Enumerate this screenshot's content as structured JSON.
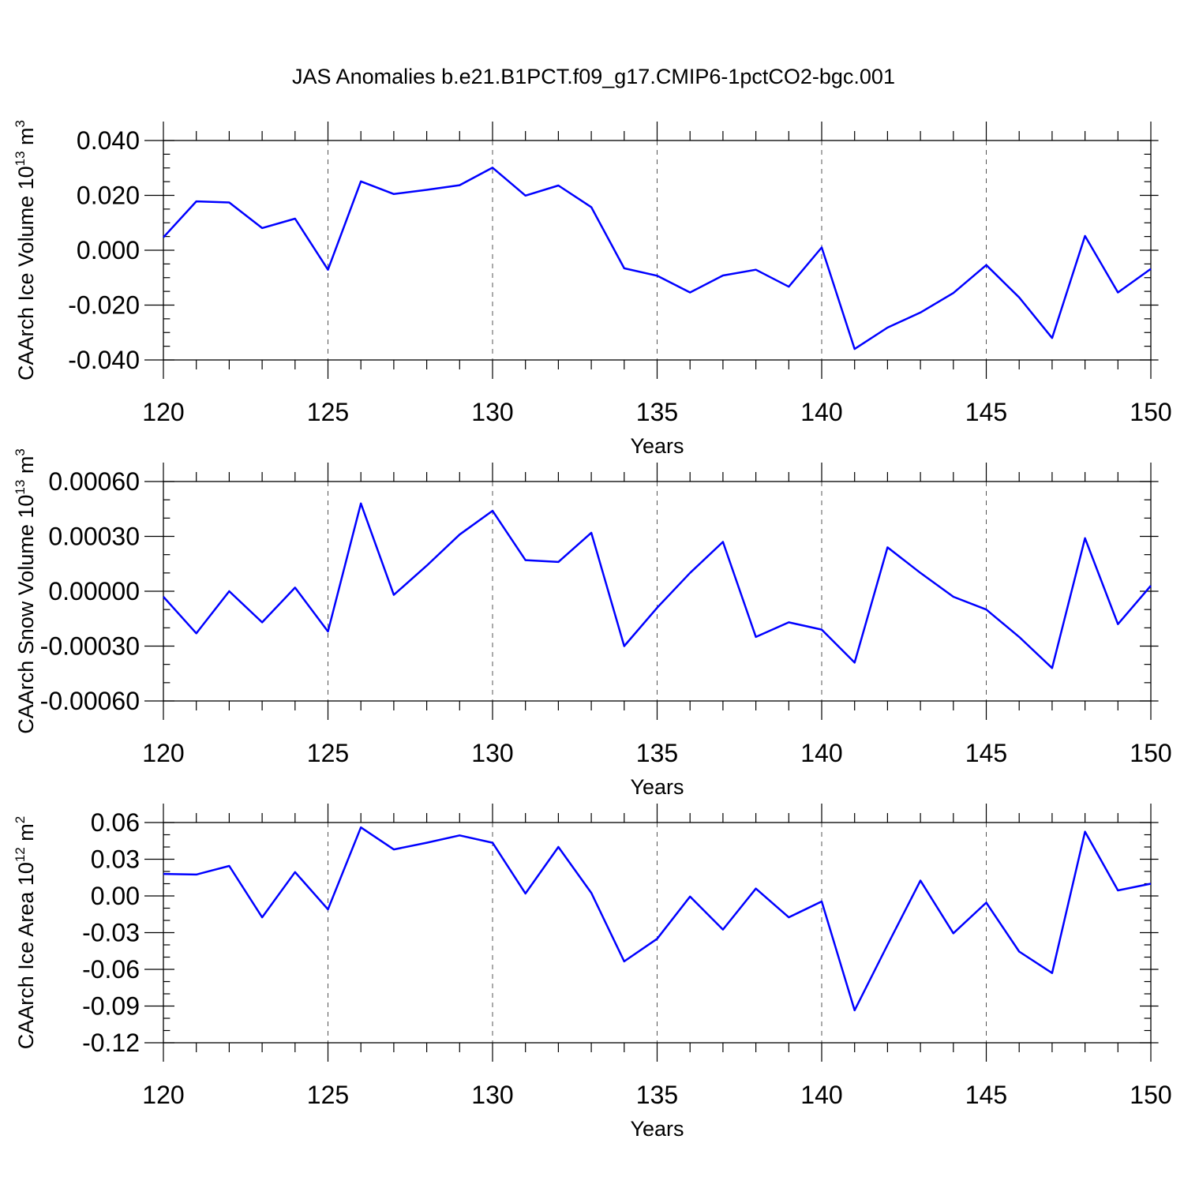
{
  "title": "JAS Anomalies b.e21.B1PCT.f09_g17.CMIP6-1pctCO2-bgc.001",
  "colors": {
    "line": "#0000ff",
    "axis": "#000000",
    "grid": "#555555"
  },
  "chart_data": [
    {
      "type": "line",
      "ylabel": "CAArch Ice Volume 10",
      "ylabel_exp": "13",
      "ylabel_unit": " m",
      "ylabel_unit_exp": "3",
      "xlabel": "Years",
      "xlim": [
        120,
        150
      ],
      "ylim": [
        -0.04,
        0.04
      ],
      "x_major_ticks": [
        120,
        125,
        130,
        135,
        140,
        145,
        150
      ],
      "x_tick_labels": [
        "120",
        "125",
        "130",
        "135",
        "140",
        "145",
        "150"
      ],
      "y_major_ticks": [
        -0.04,
        -0.02,
        0.0,
        0.02,
        0.04
      ],
      "y_tick_labels": [
        "-0.040",
        "-0.020",
        "0.000",
        "0.020",
        "0.040"
      ],
      "y_minor_step": 0.005,
      "x": [
        120,
        121,
        122,
        123,
        124,
        125,
        126,
        127,
        128,
        129,
        130,
        131,
        132,
        133,
        134,
        135,
        136,
        137,
        138,
        139,
        140,
        141,
        142,
        143,
        144,
        145,
        146,
        147,
        148,
        149,
        150
      ],
      "values": [
        0.0047,
        0.0178,
        0.0174,
        0.0081,
        0.0115,
        -0.0071,
        0.0251,
        0.0205,
        0.022,
        0.0237,
        0.0301,
        0.0199,
        0.0236,
        0.0157,
        -0.0066,
        -0.0093,
        -0.0154,
        -0.0092,
        -0.0071,
        -0.0133,
        0.001,
        -0.036,
        -0.0282,
        -0.0227,
        -0.0156,
        -0.0054,
        -0.0172,
        -0.032,
        0.0052,
        -0.0154,
        -0.0068
      ]
    },
    {
      "type": "line",
      "ylabel": "CAArch Snow Volume 10",
      "ylabel_exp": "13",
      "ylabel_unit": " m",
      "ylabel_unit_exp": "3",
      "xlabel": "Years",
      "xlim": [
        120,
        150
      ],
      "ylim": [
        -0.0006,
        0.0006
      ],
      "x_major_ticks": [
        120,
        125,
        130,
        135,
        140,
        145,
        150
      ],
      "x_tick_labels": [
        "120",
        "125",
        "130",
        "135",
        "140",
        "145",
        "150"
      ],
      "y_major_ticks": [
        -0.0006,
        -0.0003,
        0.0,
        0.0003,
        0.0006
      ],
      "y_tick_labels": [
        "-0.00060",
        "-0.00030",
        "0.00000",
        "0.00030",
        "0.00060"
      ],
      "y_minor_step": 0.0001,
      "x": [
        120,
        121,
        122,
        123,
        124,
        125,
        126,
        127,
        128,
        129,
        130,
        131,
        132,
        133,
        134,
        135,
        136,
        137,
        138,
        139,
        140,
        141,
        142,
        143,
        144,
        145,
        146,
        147,
        148,
        149,
        150
      ],
      "values": [
        -3e-05,
        -0.00023,
        0.0,
        -0.00017,
        2e-05,
        -0.00022,
        0.00048,
        -2e-05,
        0.00014,
        0.00031,
        0.00044,
        0.00017,
        0.00016,
        0.00032,
        -0.0003,
        -9e-05,
        0.0001,
        0.00027,
        -0.00025,
        -0.00017,
        -0.00021,
        -0.00039,
        0.00024,
        0.0001,
        -3e-05,
        -0.0001,
        -0.00025,
        -0.00042,
        0.00029,
        -0.00018,
        3e-05
      ]
    },
    {
      "type": "line",
      "ylabel": "CAArch Ice Area 10",
      "ylabel_exp": "12",
      "ylabel_unit": " m",
      "ylabel_unit_exp": "2",
      "xlabel": "Years",
      "xlim": [
        120,
        150
      ],
      "ylim": [
        -0.12,
        0.06
      ],
      "x_major_ticks": [
        120,
        125,
        130,
        135,
        140,
        145,
        150
      ],
      "x_tick_labels": [
        "120",
        "125",
        "130",
        "135",
        "140",
        "145",
        "150"
      ],
      "y_major_ticks": [
        -0.12,
        -0.09,
        -0.06,
        -0.03,
        0.0,
        0.03,
        0.06
      ],
      "y_tick_labels": [
        "-0.12",
        "-0.09",
        "-0.06",
        "-0.03",
        "0.00",
        "0.03",
        "0.06"
      ],
      "y_minor_step": 0.01,
      "x": [
        120,
        121,
        122,
        123,
        124,
        125,
        126,
        127,
        128,
        129,
        130,
        131,
        132,
        133,
        134,
        135,
        136,
        137,
        138,
        139,
        140,
        141,
        142,
        143,
        144,
        145,
        146,
        147,
        148,
        149,
        150
      ],
      "values": [
        0.018,
        0.0175,
        0.0245,
        -0.0175,
        0.0195,
        -0.011,
        0.056,
        0.038,
        0.0435,
        0.0495,
        0.0435,
        0.002,
        0.04,
        0.0025,
        -0.0535,
        -0.035,
        -0.0005,
        -0.0275,
        0.006,
        -0.0175,
        -0.0045,
        -0.0935,
        -0.04,
        0.0125,
        -0.0305,
        -0.0055,
        -0.0455,
        -0.063,
        0.0525,
        0.0045,
        0.01
      ]
    }
  ]
}
